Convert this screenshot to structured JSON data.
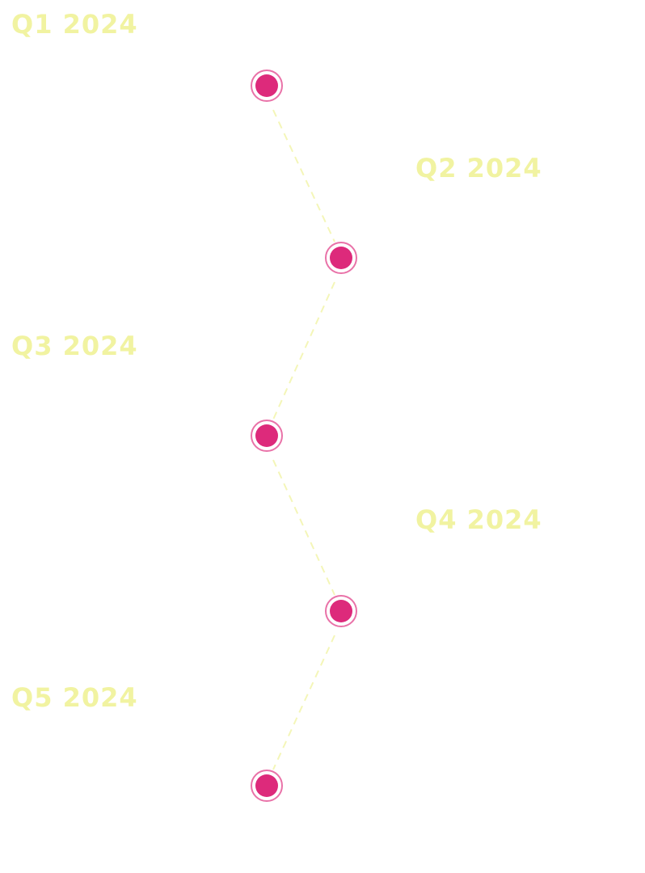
{
  "colors": {
    "label": "#f1f3a1",
    "connector": "#f4f6b8",
    "node_fill": "#dd2a7b",
    "node_ring": "#e44f92"
  },
  "milestones": [
    {
      "label": "Q1 2024"
    },
    {
      "label": "Q2 2024"
    },
    {
      "label": "Q3 2024"
    },
    {
      "label": "Q4 2024"
    },
    {
      "label": "Q5 2024"
    }
  ]
}
